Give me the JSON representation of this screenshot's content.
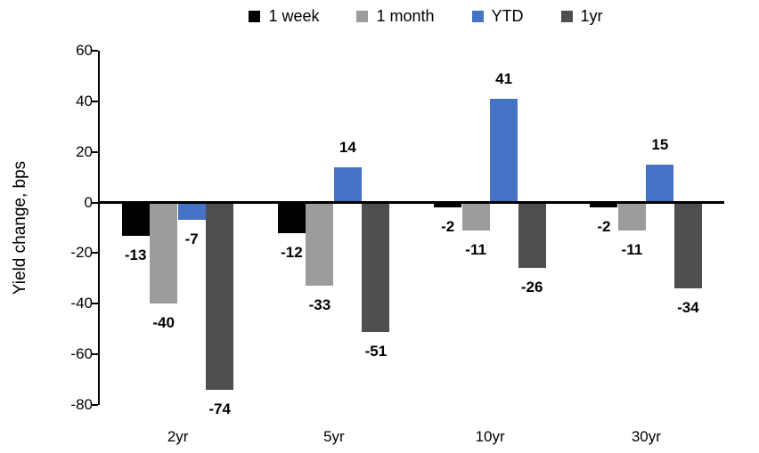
{
  "chart_data": {
    "type": "bar",
    "title": "",
    "ylabel": "Yield change, bps",
    "xlabel": "",
    "categories": [
      "2yr",
      "5yr",
      "10yr",
      "30yr"
    ],
    "series": [
      {
        "name": "1 week",
        "color": "#000000",
        "values": [
          -13,
          -12,
          -2,
          -2
        ]
      },
      {
        "name": "1 month",
        "color": "#9C9C9C",
        "values": [
          -40,
          -33,
          -11,
          -11
        ]
      },
      {
        "name": "YTD",
        "color": "#4472C4",
        "values": [
          -7,
          14,
          41,
          15
        ]
      },
      {
        "name": "1yr",
        "color": "#4F4F4F",
        "values": [
          -74,
          -51,
          -26,
          -34
        ]
      }
    ],
    "ylim": [
      -80,
      60
    ],
    "yticks": [
      60,
      40,
      20,
      0,
      -20,
      -40,
      -60,
      -80
    ],
    "grid": false,
    "legend_position": "top",
    "data_labels": "outside-end, bold"
  }
}
